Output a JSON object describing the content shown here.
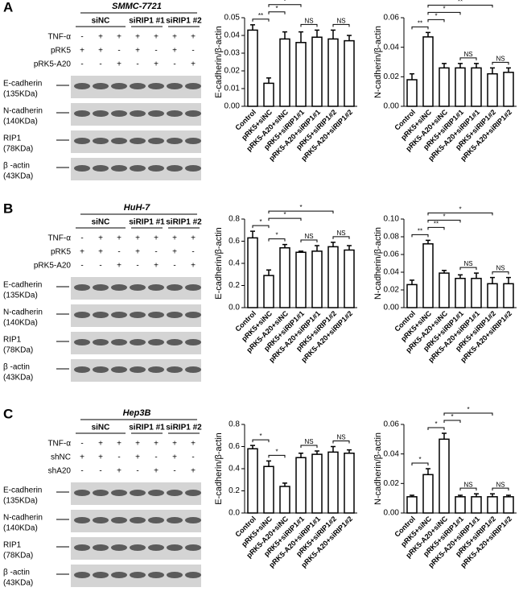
{
  "panels": [
    {
      "letter": "A",
      "cell_line": "SMMC-7721",
      "groups": [
        "siNC",
        "siRIP1 #1",
        "siRIP1 #2"
      ],
      "rows": [
        {
          "label": "TNF-α",
          "signs": [
            "-",
            "+",
            "+",
            "+",
            "+",
            "+",
            "+"
          ]
        },
        {
          "label": "pRK5",
          "signs": [
            "+",
            "+",
            "-",
            "+",
            "-",
            "+",
            "-"
          ]
        },
        {
          "label": "pRK5-A20",
          "signs": [
            "-",
            "-",
            "+",
            "-",
            "+",
            "-",
            "+"
          ]
        }
      ],
      "bands": [
        {
          "name": "E-cadherin",
          "size": "(135KDa)"
        },
        {
          "name": "N-cadherin",
          "size": "(140KDa)"
        },
        {
          "name": "RIP1",
          "size": "(78KDa)"
        },
        {
          "name": "β -actin",
          "size": "(43KDa)"
        }
      ]
    },
    {
      "letter": "B",
      "cell_line": "HuH-7",
      "groups": [
        "siNC",
        "siRIP1 #1",
        "siRIP1 #2"
      ],
      "rows": [
        {
          "label": "TNF-α",
          "signs": [
            "-",
            "+",
            "+",
            "+",
            "+",
            "+",
            "+"
          ]
        },
        {
          "label": "pRK5",
          "signs": [
            "+",
            "+",
            "-",
            "+",
            "-",
            "+",
            "-"
          ]
        },
        {
          "label": "pRK5-A20",
          "signs": [
            "-",
            "-",
            "+",
            "-",
            "+",
            "-",
            "+"
          ]
        }
      ],
      "bands": [
        {
          "name": "E-cadherin",
          "size": "(135KDa)"
        },
        {
          "name": "N-cadherin",
          "size": "(140KDa)"
        },
        {
          "name": "RIP1",
          "size": "(78KDa)"
        },
        {
          "name": "β -actin",
          "size": "(43KDa)"
        }
      ]
    },
    {
      "letter": "C",
      "cell_line": "Hep3B",
      "groups": [
        "siNC",
        "siRIP1 #1",
        "siRIP1 #2"
      ],
      "rows": [
        {
          "label": "TNF-α",
          "signs": [
            "-",
            "+",
            "+",
            "+",
            "+",
            "+",
            "+"
          ]
        },
        {
          "label": "shNC",
          "signs": [
            "+",
            "+",
            "-",
            "+",
            "-",
            "+",
            "-"
          ]
        },
        {
          "label": "shA20",
          "signs": [
            "-",
            "-",
            "+",
            "-",
            "+",
            "-",
            "+"
          ]
        }
      ],
      "bands": [
        {
          "name": "E-cadherin",
          "size": "(135KDa)"
        },
        {
          "name": "N-cadherin",
          "size": "(140KDa)"
        },
        {
          "name": "RIP1",
          "size": "(78KDa)"
        },
        {
          "name": "β -actin",
          "size": "(43KDa)"
        }
      ]
    }
  ],
  "chart_data": [
    {
      "type": "bar",
      "ylabel": "E-cadherin/β-actin",
      "categories": [
        "Control",
        "pRK5+siNC",
        "pRK5-A20+siNC",
        "pRK5+siRIP1#1",
        "pRK5-A20+siRIP1#1",
        "pRK5+siRIP1#2",
        "pRK5-A20+siRIP1#2"
      ],
      "values": [
        0.043,
        0.013,
        0.038,
        0.036,
        0.039,
        0.038,
        0.037
      ],
      "errors": [
        0.003,
        0.003,
        0.004,
        0.006,
        0.004,
        0.005,
        0.003
      ],
      "ylim": [
        0,
        0.05
      ],
      "yticks": [
        {
          "value": 0,
          "label": "0.00"
        },
        0.01,
        0.02,
        0.03,
        0.04,
        0.05
      ],
      "comparisons": [
        {
          "from": 0,
          "to": 1,
          "label": "**"
        },
        {
          "from": 1,
          "to": 2,
          "label": "*"
        },
        {
          "from": 1,
          "to": 3,
          "label": "*"
        },
        {
          "from": 1,
          "to": 5,
          "label": "*"
        },
        {
          "from": 3,
          "to": 4,
          "label": "NS"
        },
        {
          "from": 5,
          "to": 6,
          "label": "NS"
        }
      ]
    },
    {
      "type": "bar",
      "ylabel": "N-cadherin/β-actin",
      "categories": [
        "Control",
        "pRK5+siNC",
        "pRK5-A20+siNC",
        "pRK5+siRIP1#1",
        "pRK5-A20+siRIP1#1",
        "pRK5+siRIP1#2",
        "pRK5-A20+siRIP1#2"
      ],
      "values": [
        0.018,
        0.047,
        0.026,
        0.026,
        0.026,
        0.022,
        0.023
      ],
      "errors": [
        0.004,
        0.003,
        0.003,
        0.003,
        0.003,
        0.004,
        0.003
      ],
      "ylim": [
        0,
        0.06
      ],
      "yticks": [
        {
          "value": 0,
          "label": "0.00"
        },
        0.02,
        0.04,
        0.06
      ],
      "comparisons": [
        {
          "from": 0,
          "to": 1,
          "label": "**"
        },
        {
          "from": 1,
          "to": 2,
          "label": "*"
        },
        {
          "from": 1,
          "to": 3,
          "label": "*"
        },
        {
          "from": 1,
          "to": 5,
          "label": "**"
        },
        {
          "from": 3,
          "to": 4,
          "label": "NS"
        },
        {
          "from": 5,
          "to": 6,
          "label": "NS"
        }
      ]
    },
    {
      "type": "bar",
      "ylabel": "E-cadherin/β-actin",
      "categories": [
        "Control",
        "pRK5+siNC",
        "pRK5-A20+siNC",
        "pRK5+siRIP1#1",
        "pRK5-A20+siRIP1#1",
        "pRK5+siRIP1#2",
        "pRK5-A20+siRIP1#2"
      ],
      "values": [
        0.63,
        0.29,
        0.54,
        0.5,
        0.51,
        0.55,
        0.52
      ],
      "errors": [
        0.06,
        0.05,
        0.03,
        0.01,
        0.05,
        0.04,
        0.04
      ],
      "ylim": [
        0,
        0.8
      ],
      "yticks": [
        {
          "value": 0,
          "label": "0.0"
        },
        0.2,
        0.4,
        0.6,
        0.8
      ],
      "comparisons": [
        {
          "from": 0,
          "to": 1,
          "label": "*"
        },
        {
          "from": 1,
          "to": 2,
          "label": "*"
        },
        {
          "from": 1,
          "to": 3,
          "label": "*"
        },
        {
          "from": 1,
          "to": 5,
          "label": "*"
        },
        {
          "from": 3,
          "to": 4,
          "label": "NS"
        },
        {
          "from": 5,
          "to": 6,
          "label": "NS"
        }
      ]
    },
    {
      "type": "bar",
      "ylabel": "N-cadherin/β-actin",
      "categories": [
        "Control",
        "pRK5+siNC",
        "pRK5-A20+siNC",
        "pRK5+siRIP1#1",
        "pRK5-A20+siRIP1#1",
        "pRK5+siRIP1#2",
        "pRK5-A20+siRIP1#2"
      ],
      "values": [
        0.026,
        0.072,
        0.039,
        0.033,
        0.033,
        0.027,
        0.027
      ],
      "errors": [
        0.005,
        0.004,
        0.003,
        0.004,
        0.006,
        0.007,
        0.007
      ],
      "ylim": [
        0,
        0.1
      ],
      "yticks": [
        {
          "value": 0,
          "label": "0.00"
        },
        0.02,
        0.04,
        0.06,
        0.08,
        {
          "value": 0.1,
          "label": "0.10"
        }
      ],
      "comparisons": [
        {
          "from": 0,
          "to": 1,
          "label": "**"
        },
        {
          "from": 1,
          "to": 2,
          "label": "**"
        },
        {
          "from": 1,
          "to": 3,
          "label": "*"
        },
        {
          "from": 1,
          "to": 5,
          "label": "*"
        },
        {
          "from": 3,
          "to": 4,
          "label": "NS"
        },
        {
          "from": 5,
          "to": 6,
          "label": "NS"
        }
      ]
    },
    {
      "type": "bar",
      "ylabel": "E-cadherin/β-actin",
      "categories": [
        "Control",
        "pRK5+siNC",
        "pRK5-A20+siNC",
        "pRK5+siRIP1#1",
        "pRK5-A20+siRIP1#1",
        "pRK5+siRIP1#2",
        "pRK5-A20+siRIP1#2"
      ],
      "values": [
        0.58,
        0.42,
        0.24,
        0.5,
        0.53,
        0.55,
        0.54
      ],
      "errors": [
        0.03,
        0.05,
        0.03,
        0.04,
        0.03,
        0.05,
        0.03
      ],
      "ylim": [
        0,
        0.8
      ],
      "yticks": [
        {
          "value": 0,
          "label": "0.0"
        },
        0.2,
        0.4,
        0.6,
        0.8
      ],
      "comparisons": [
        {
          "from": 0,
          "to": 1,
          "label": "*"
        },
        {
          "from": 1,
          "to": 2,
          "label": "*"
        },
        {
          "from": 3,
          "to": 4,
          "label": "NS"
        },
        {
          "from": 5,
          "to": 6,
          "label": "NS"
        }
      ]
    },
    {
      "type": "bar",
      "ylabel": "N-cadherin/β-actin",
      "categories": [
        "Control",
        "pRK5+siNC",
        "pRK5-A20+siNC",
        "pRK5+siRIP1#1",
        "pRK5-A20+siRIP1#1",
        "pRK5+siRIP1#2",
        "pRK5-A20+siRIP1#2"
      ],
      "values": [
        0.011,
        0.026,
        0.05,
        0.011,
        0.011,
        0.011,
        0.011
      ],
      "errors": [
        0.001,
        0.004,
        0.004,
        0.001,
        0.002,
        0.002,
        0.001
      ],
      "ylim": [
        0,
        0.06
      ],
      "yticks": [
        {
          "value": 0,
          "label": "0.00"
        },
        0.02,
        0.04,
        0.06
      ],
      "comparisons": [
        {
          "from": 0,
          "to": 1,
          "label": "*"
        },
        {
          "from": 1,
          "to": 2,
          "label": "*"
        },
        {
          "from": 2,
          "to": 3,
          "label": "*"
        },
        {
          "from": 2,
          "to": 5,
          "label": "*"
        },
        {
          "from": 3,
          "to": 4,
          "label": "NS"
        },
        {
          "from": 5,
          "to": 6,
          "label": "NS"
        }
      ]
    }
  ]
}
